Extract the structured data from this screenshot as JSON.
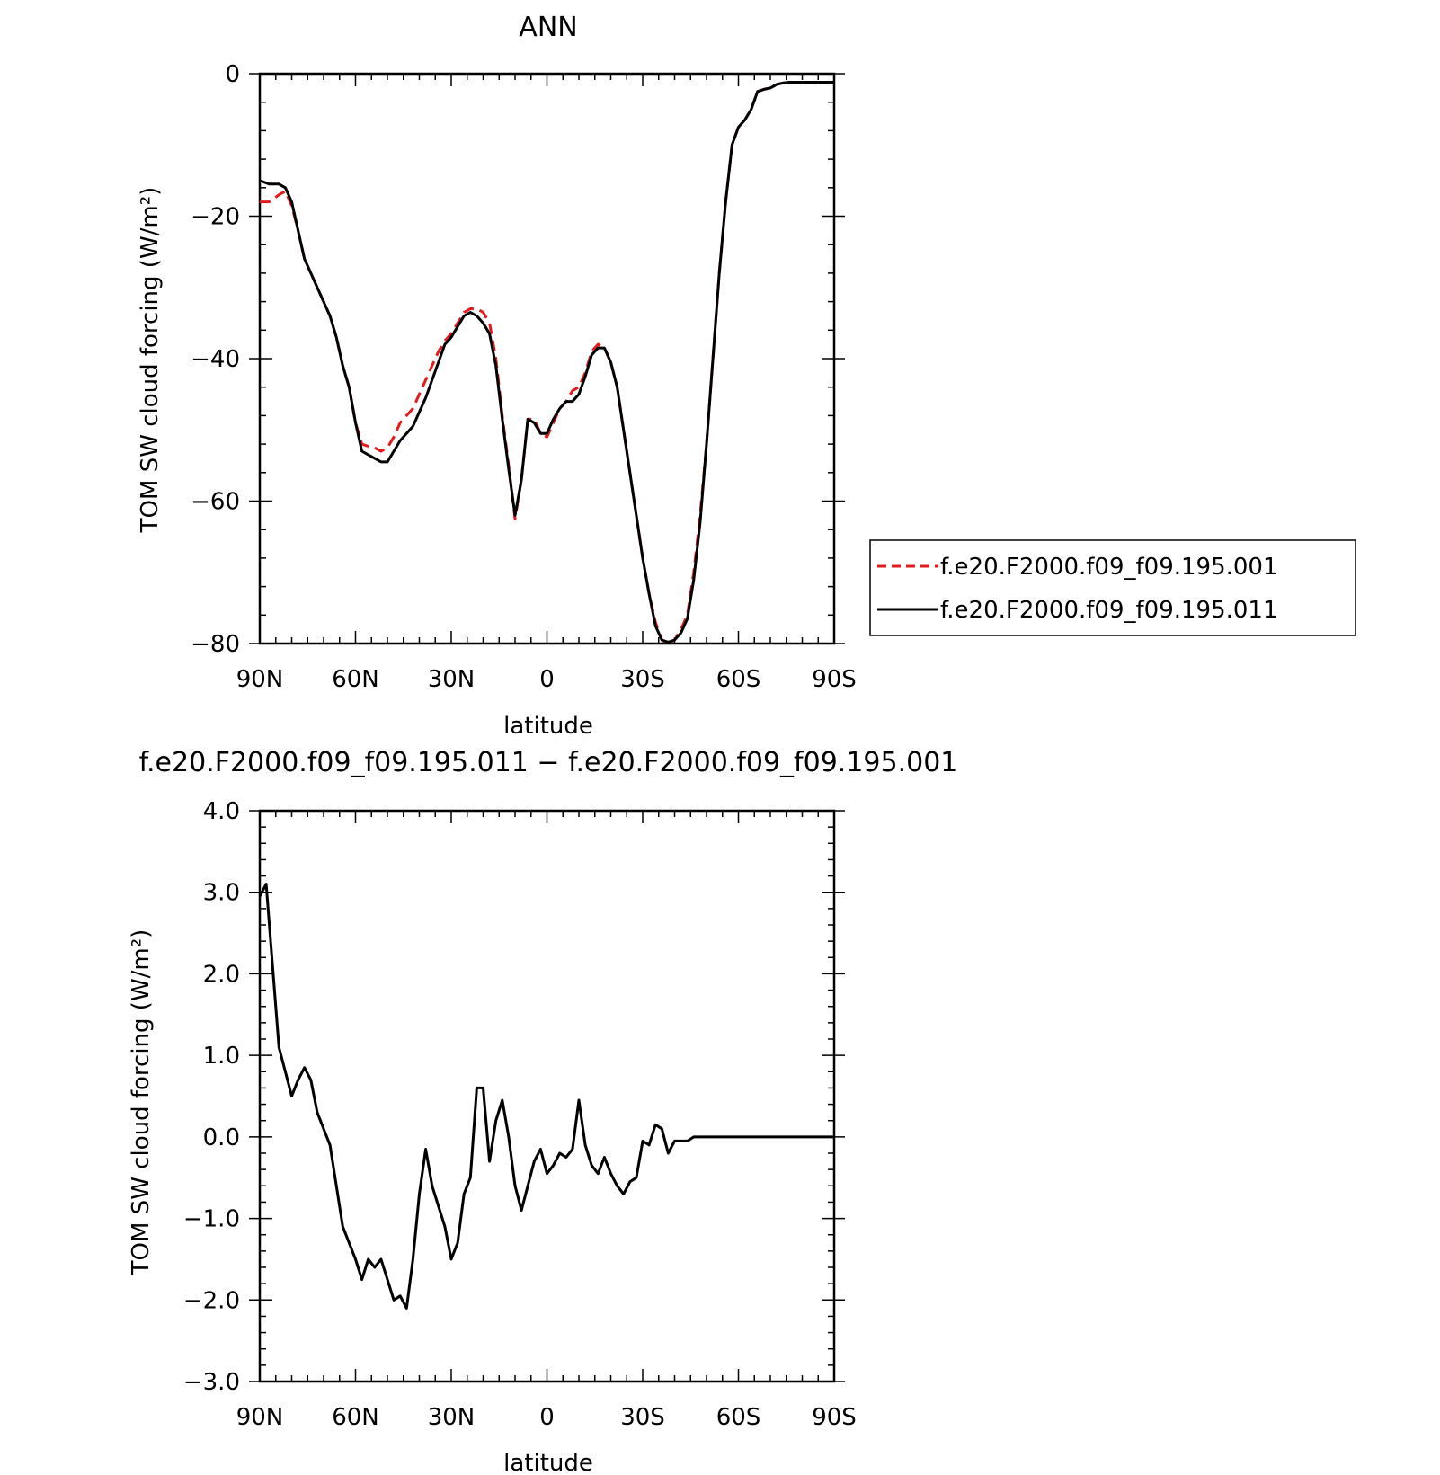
{
  "chart_data": [
    {
      "type": "line",
      "title": "ANN",
      "xlabel": "latitude",
      "ylabel": "TOM SW cloud forcing (W/m²)",
      "xlim": [
        90,
        -90
      ],
      "ylim": [
        -80,
        0
      ],
      "xticks": [
        90,
        60,
        30,
        0,
        -30,
        -60,
        -90
      ],
      "xtick_labels": [
        "90N",
        "60N",
        "30N",
        "0",
        "30S",
        "60S",
        "90S"
      ],
      "yticks": [
        0,
        -20,
        -40,
        -60,
        -80
      ],
      "ytick_labels": [
        "0",
        "−20",
        "−40",
        "−60",
        "−80"
      ],
      "legend_position": "right",
      "series": [
        {
          "name": "f.e20.F2000.f09_f09.195.001",
          "color": "#e41a1c",
          "style": "dashed",
          "x": [
            90,
            87,
            84,
            82,
            80,
            78,
            76,
            74,
            72,
            70,
            68,
            66,
            64,
            62,
            60,
            58,
            56,
            54,
            52,
            50,
            48,
            46,
            44,
            42,
            40,
            38,
            36,
            34,
            32,
            30,
            28,
            26,
            24,
            22,
            20,
            18,
            16,
            14,
            12,
            10,
            8,
            6,
            4,
            2,
            0,
            -2,
            -4,
            -6,
            -8,
            -10,
            -12,
            -14,
            -16,
            -18,
            -20,
            -22,
            -24,
            -26,
            -28,
            -30,
            -32,
            -34,
            -36,
            -38,
            -40,
            -42,
            -44,
            -46,
            -48,
            -50,
            -52,
            -54,
            -56,
            -58,
            -60,
            -62,
            -64,
            -66,
            -68,
            -70,
            -72,
            -74,
            -76,
            -78,
            -80,
            -84,
            -88,
            -90
          ],
          "y": [
            -18,
            -18,
            -17,
            -16.5,
            -18.5,
            -22,
            -26,
            -28,
            -30,
            -32,
            -34,
            -37,
            -41,
            -44,
            -49,
            -52,
            -52.3,
            -52.5,
            -53,
            -52.5,
            -51,
            -49,
            -48,
            -47,
            -45,
            -43,
            -41,
            -39,
            -37.5,
            -36.5,
            -35,
            -33.5,
            -33,
            -33,
            -33.5,
            -35,
            -40,
            -48,
            -55,
            -62.5,
            -57,
            -48.5,
            -48.5,
            -50.5,
            -51,
            -49,
            -47,
            -46,
            -44.5,
            -44,
            -42,
            -39,
            -38,
            -38.5,
            -40.5,
            -44,
            -50,
            -56,
            -62,
            -68,
            -73,
            -77,
            -79.5,
            -80,
            -79.5,
            -78,
            -76,
            -70,
            -62,
            -52,
            -40,
            -28,
            -18,
            -10,
            -7.5,
            -6.5,
            -5,
            -2.5,
            -2.2,
            -2,
            -1.5,
            -1.3,
            -1.2,
            -1.2,
            -1.2,
            -1.2,
            -1.2,
            -1.2
          ]
        },
        {
          "name": "f.e20.F2000.f09_f09.195.011",
          "color": "#000000",
          "style": "solid",
          "x": [
            90,
            87,
            84,
            82,
            80,
            78,
            76,
            74,
            72,
            70,
            68,
            66,
            64,
            62,
            60,
            58,
            56,
            54,
            52,
            50,
            48,
            46,
            44,
            42,
            40,
            38,
            36,
            34,
            32,
            30,
            28,
            26,
            24,
            22,
            20,
            18,
            16,
            14,
            12,
            10,
            8,
            6,
            4,
            2,
            0,
            -2,
            -4,
            -6,
            -8,
            -10,
            -12,
            -14,
            -16,
            -18,
            -20,
            -22,
            -24,
            -26,
            -28,
            -30,
            -32,
            -34,
            -36,
            -38,
            -40,
            -42,
            -44,
            -46,
            -48,
            -50,
            -52,
            -54,
            -56,
            -58,
            -60,
            -62,
            -64,
            -66,
            -68,
            -70,
            -72,
            -74,
            -76,
            -78,
            -80,
            -84,
            -88,
            -90
          ],
          "y": [
            -15,
            -15.5,
            -15.5,
            -16,
            -18,
            -22,
            -26,
            -28,
            -30,
            -32,
            -34,
            -37,
            -41,
            -44,
            -49,
            -53,
            -53.5,
            -54,
            -54.5,
            -54.5,
            -53,
            -51.5,
            -50.5,
            -49.5,
            -47.5,
            -45.5,
            -43,
            -40.5,
            -38,
            -37,
            -35.5,
            -34,
            -33.5,
            -34,
            -35,
            -36.5,
            -41,
            -48.5,
            -55.5,
            -62,
            -57,
            -48.5,
            -49,
            -50.5,
            -50.5,
            -48.5,
            -47,
            -46,
            -46,
            -45,
            -42.5,
            -39.5,
            -38.5,
            -38.5,
            -40.5,
            -44,
            -50,
            -56,
            -62,
            -68,
            -73,
            -77.5,
            -79.5,
            -79.8,
            -79.5,
            -78.5,
            -76.5,
            -71,
            -63,
            -52,
            -40,
            -28,
            -18,
            -10,
            -7.5,
            -6.5,
            -5,
            -2.5,
            -2.2,
            -2,
            -1.5,
            -1.3,
            -1.2,
            -1.2,
            -1.2,
            -1.2,
            -1.2,
            -1.2
          ]
        }
      ]
    },
    {
      "type": "line",
      "title": "f.e20.F2000.f09_f09.195.011 − f.e20.F2000.f09_f09.195.001",
      "xlabel": "latitude",
      "ylabel": "TOM SW cloud forcing (W/m²)",
      "xlim": [
        90,
        -90
      ],
      "ylim": [
        -3,
        4
      ],
      "xticks": [
        90,
        60,
        30,
        0,
        -30,
        -60,
        -90
      ],
      "xtick_labels": [
        "90N",
        "60N",
        "30N",
        "0",
        "30S",
        "60S",
        "90S"
      ],
      "yticks": [
        4,
        3,
        2,
        1,
        0,
        -1,
        -2,
        -3
      ],
      "ytick_labels": [
        "4.0",
        "3.0",
        "2.0",
        "1.0",
        "0.0",
        "−1.0",
        "−2.0",
        "−3.0"
      ],
      "series": [
        {
          "color": "#000000",
          "style": "solid",
          "x": [
            90,
            88,
            86,
            84,
            82,
            80,
            78,
            76,
            74,
            72,
            70,
            68,
            66,
            64,
            62,
            60,
            58,
            56,
            54,
            52,
            50,
            48,
            46,
            44,
            42,
            40,
            38,
            36,
            34,
            32,
            30,
            28,
            26,
            24,
            22,
            20,
            18,
            16,
            14,
            12,
            10,
            8,
            6,
            4,
            2,
            0,
            -2,
            -4,
            -6,
            -8,
            -10,
            -12,
            -14,
            -16,
            -18,
            -20,
            -22,
            -24,
            -26,
            -28,
            -30,
            -32,
            -34,
            -36,
            -38,
            -40,
            -42,
            -44,
            -46,
            -48,
            -50,
            -52,
            -54,
            -56,
            -58,
            -60,
            -62,
            -64,
            -66,
            -68,
            -70,
            -72,
            -74,
            -76,
            -78,
            -80,
            -82,
            -84,
            -86,
            -88,
            -90
          ],
          "y": [
            2.95,
            3.1,
            2.1,
            1.1,
            0.8,
            0.5,
            0.7,
            0.85,
            0.7,
            0.3,
            0.1,
            -0.1,
            -0.6,
            -1.1,
            -1.3,
            -1.5,
            -1.75,
            -1.5,
            -1.6,
            -1.5,
            -1.75,
            -2.0,
            -1.95,
            -2.1,
            -1.5,
            -0.7,
            -0.15,
            -0.6,
            -0.85,
            -1.1,
            -1.5,
            -1.3,
            -0.7,
            -0.5,
            0.6,
            0.6,
            -0.3,
            0.2,
            0.45,
            0.0,
            -0.6,
            -0.9,
            -0.6,
            -0.3,
            -0.15,
            -0.45,
            -0.35,
            -0.2,
            -0.25,
            -0.15,
            0.45,
            -0.1,
            -0.35,
            -0.45,
            -0.25,
            -0.45,
            -0.6,
            -0.7,
            -0.55,
            -0.5,
            -0.05,
            -0.1,
            0.15,
            0.1,
            -0.2,
            -0.05,
            -0.05,
            -0.05,
            0.0,
            0.0,
            0.0,
            0.0,
            0.0,
            0.0,
            0.0,
            0.0,
            0.0,
            0.0,
            0.0,
            0.0,
            0.0,
            0.0,
            0.0,
            0.0,
            0.0,
            0.0,
            0.0,
            0.0,
            0.0,
            0.0,
            0.0
          ]
        }
      ]
    }
  ]
}
